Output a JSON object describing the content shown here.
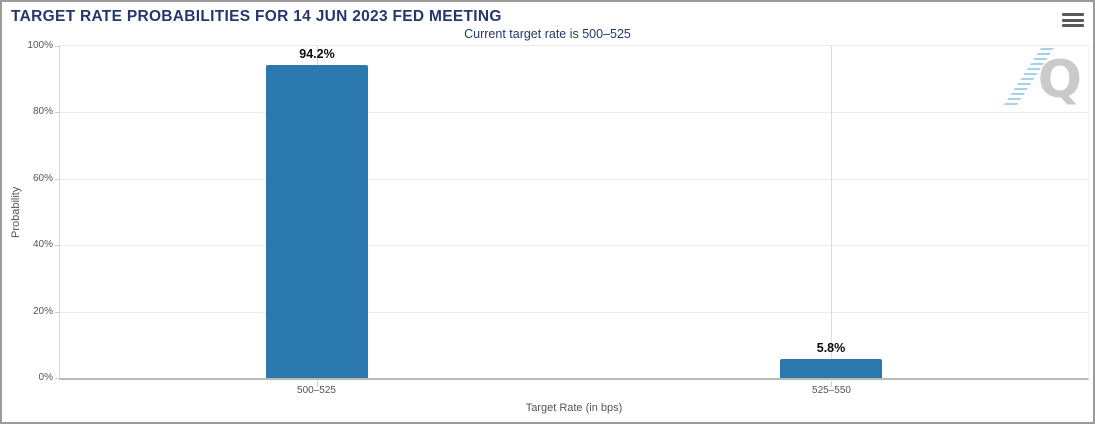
{
  "header": {
    "menu_icon": "hamburger-icon"
  },
  "watermark": {
    "letter": "Q"
  },
  "colors": {
    "title_navy": "#24386d",
    "bar_blue": "#2a78ad",
    "axis_text": "#555555",
    "gridline": "#ececec",
    "frame_border": "#9b9b9b",
    "hamburger_gray": "#58585a",
    "watermark_gray": "#cacaca",
    "watermark_blue": "#8cc8e4"
  },
  "chart_data": {
    "type": "bar",
    "title": "TARGET RATE PROBABILITIES FOR 14 JUN 2023 FED MEETING",
    "subtitle": "Current target rate is 500–525",
    "categories": [
      "500–525",
      "525–550"
    ],
    "values": [
      94.2,
      5.8
    ],
    "value_labels": [
      "94.2%",
      "5.8%"
    ],
    "xlabel": "Target Rate (in bps)",
    "ylabel": "Probability",
    "ylim": [
      0,
      100
    ],
    "yticks": [
      "0%",
      "20%",
      "40%",
      "60%",
      "80%",
      "100%"
    ],
    "grid": true,
    "legend": false,
    "bar_color": "#2a78ad"
  }
}
